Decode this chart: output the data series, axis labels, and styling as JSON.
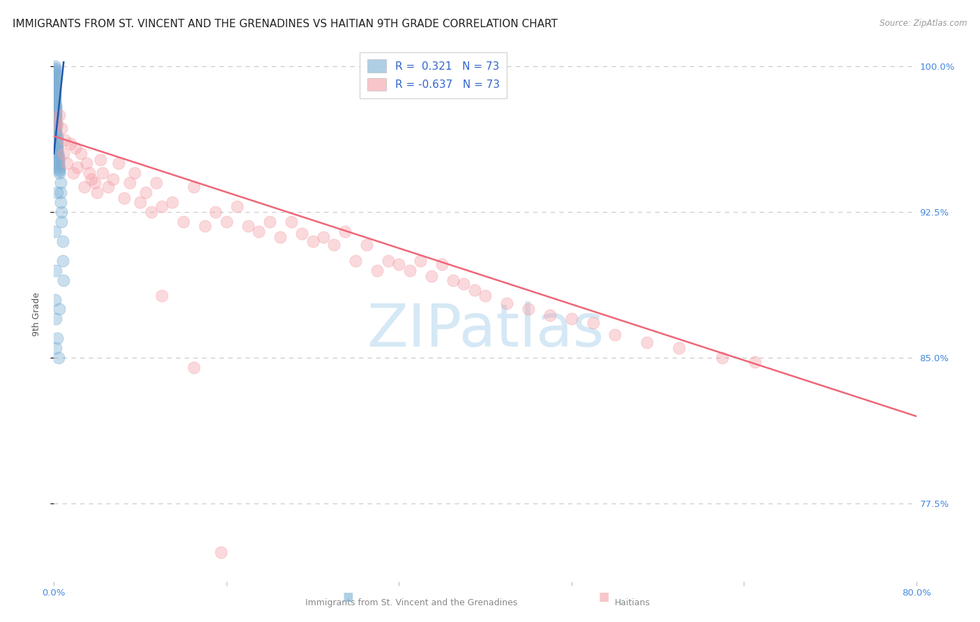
{
  "title": "IMMIGRANTS FROM ST. VINCENT AND THE GRENADINES VS HAITIAN 9TH GRADE CORRELATION CHART",
  "source": "Source: ZipAtlas.com",
  "legend_label1": "Immigrants from St. Vincent and the Grenadines",
  "legend_label2": "Haitians",
  "ylabel": "9th Grade",
  "x_min": 0.0,
  "x_max": 0.8,
  "y_min": 0.735,
  "y_max": 1.01,
  "ytick_values": [
    1.0,
    0.925,
    0.85,
    0.775
  ],
  "ytick_labels": [
    "100.0%",
    "92.5%",
    "85.0%",
    "77.5%"
  ],
  "xtick_values": [
    0.0,
    0.16,
    0.32,
    0.48,
    0.64,
    0.8
  ],
  "xtick_labels": [
    "0.0%",
    "",
    "",
    "",
    "",
    "80.0%"
  ],
  "R_blue": 0.321,
  "N_blue": 73,
  "R_pink": -0.637,
  "N_pink": 73,
  "blue_color": "#7BAFD4",
  "pink_color": "#F4A0A8",
  "blue_line_color": "#2255AA",
  "pink_line_color": "#EE6677",
  "watermark_text": "ZIPatlas",
  "watermark_color": "#D5E8F5",
  "grid_color": "#CCCCCC",
  "title_color": "#222222",
  "source_color": "#999999",
  "tick_color": "#4488DD",
  "ylabel_color": "#555555",
  "pink_line_y0": 0.964,
  "pink_line_y1": 0.82,
  "blue_line_x0": 0.0,
  "blue_line_x1": 0.009,
  "blue_line_y0": 0.955,
  "blue_line_y1": 1.002,
  "blue_x": [
    0.001,
    0.001,
    0.001,
    0.001,
    0.001,
    0.001,
    0.001,
    0.001,
    0.001,
    0.001,
    0.001,
    0.001,
    0.001,
    0.001,
    0.001,
    0.001,
    0.001,
    0.001,
    0.001,
    0.001,
    0.002,
    0.002,
    0.002,
    0.002,
    0.002,
    0.002,
    0.002,
    0.002,
    0.002,
    0.002,
    0.002,
    0.002,
    0.002,
    0.002,
    0.002,
    0.002,
    0.003,
    0.003,
    0.003,
    0.003,
    0.003,
    0.003,
    0.003,
    0.003,
    0.003,
    0.003,
    0.004,
    0.004,
    0.004,
    0.004,
    0.004,
    0.004,
    0.005,
    0.005,
    0.005,
    0.005,
    0.006,
    0.006,
    0.006,
    0.007,
    0.007,
    0.008,
    0.008,
    0.009,
    0.001,
    0.002,
    0.003,
    0.004,
    0.005,
    0.002,
    0.001,
    0.003,
    0.002
  ],
  "blue_y": [
    1.0,
    0.999,
    0.998,
    0.997,
    0.996,
    0.995,
    0.994,
    0.993,
    0.992,
    0.991,
    0.99,
    0.989,
    0.988,
    0.987,
    0.986,
    0.985,
    0.984,
    0.983,
    0.982,
    0.981,
    0.98,
    0.979,
    0.978,
    0.977,
    0.976,
    0.975,
    0.974,
    0.973,
    0.972,
    0.971,
    0.97,
    0.969,
    0.968,
    0.967,
    0.966,
    0.965,
    0.964,
    0.963,
    0.962,
    0.961,
    0.96,
    0.959,
    0.958,
    0.957,
    0.956,
    0.955,
    0.954,
    0.953,
    0.952,
    0.951,
    0.95,
    0.949,
    0.948,
    0.947,
    0.946,
    0.945,
    0.94,
    0.935,
    0.93,
    0.925,
    0.92,
    0.91,
    0.9,
    0.89,
    0.88,
    0.87,
    0.86,
    0.85,
    0.875,
    0.895,
    0.915,
    0.935,
    0.855
  ],
  "pink_x": [
    0.003,
    0.005,
    0.007,
    0.009,
    0.01,
    0.012,
    0.015,
    0.018,
    0.02,
    0.022,
    0.025,
    0.028,
    0.03,
    0.033,
    0.035,
    0.038,
    0.04,
    0.043,
    0.045,
    0.05,
    0.055,
    0.06,
    0.065,
    0.07,
    0.075,
    0.08,
    0.085,
    0.09,
    0.095,
    0.1,
    0.11,
    0.12,
    0.13,
    0.14,
    0.15,
    0.16,
    0.17,
    0.18,
    0.19,
    0.2,
    0.21,
    0.22,
    0.23,
    0.24,
    0.25,
    0.26,
    0.27,
    0.28,
    0.29,
    0.3,
    0.31,
    0.32,
    0.33,
    0.34,
    0.35,
    0.36,
    0.37,
    0.38,
    0.39,
    0.4,
    0.42,
    0.44,
    0.46,
    0.48,
    0.5,
    0.52,
    0.55,
    0.58,
    0.62,
    0.65,
    0.1,
    0.13,
    0.155
  ],
  "pink_y": [
    0.97,
    0.975,
    0.968,
    0.955,
    0.962,
    0.95,
    0.96,
    0.945,
    0.958,
    0.948,
    0.955,
    0.938,
    0.95,
    0.945,
    0.942,
    0.94,
    0.935,
    0.952,
    0.945,
    0.938,
    0.942,
    0.95,
    0.932,
    0.94,
    0.945,
    0.93,
    0.935,
    0.925,
    0.94,
    0.928,
    0.93,
    0.92,
    0.938,
    0.918,
    0.925,
    0.92,
    0.928,
    0.918,
    0.915,
    0.92,
    0.912,
    0.92,
    0.914,
    0.91,
    0.912,
    0.908,
    0.915,
    0.9,
    0.908,
    0.895,
    0.9,
    0.898,
    0.895,
    0.9,
    0.892,
    0.898,
    0.89,
    0.888,
    0.885,
    0.882,
    0.878,
    0.875,
    0.872,
    0.87,
    0.868,
    0.862,
    0.858,
    0.855,
    0.85,
    0.848,
    0.882,
    0.845,
    0.75
  ]
}
